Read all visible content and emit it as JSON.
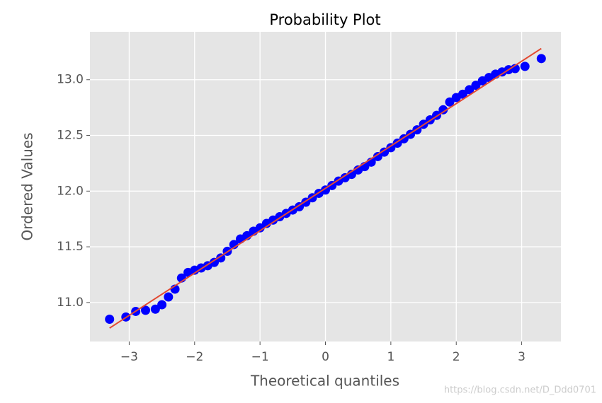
{
  "chart_data": {
    "type": "scatter",
    "title": "Probability Plot",
    "x_label": "Theoretical quantiles",
    "y_label": "Ordered Values",
    "watermark": "https://blog.csdn.net/D_Ddd0701",
    "xlim": [
      -3.6,
      3.6
    ],
    "ylim": [
      10.65,
      13.43
    ],
    "xticks": [
      {
        "value": -3,
        "label": "−3"
      },
      {
        "value": -2,
        "label": "−2"
      },
      {
        "value": -1,
        "label": "−1"
      },
      0,
      1,
      2,
      3
    ],
    "yticks": [
      {
        "value": 11,
        "label": "11.0"
      },
      {
        "value": 11.5,
        "label": "11.5"
      },
      {
        "value": 12,
        "label": "12.0"
      },
      {
        "value": 12.5,
        "label": "12.5"
      },
      {
        "value": 13,
        "label": "13.0"
      }
    ],
    "grid": true,
    "series": [
      {
        "color": "#0000ff",
        "x": [
          -3.3,
          -3.05,
          -2.9,
          -2.75,
          -2.6,
          -2.5,
          -2.4,
          -2.3,
          -2.2,
          -2.1,
          -2.0,
          -1.9,
          -1.8,
          -1.7,
          -1.6,
          -1.5,
          -1.4,
          -1.3,
          -1.2,
          -1.1,
          -1.0,
          -0.9,
          -0.8,
          -0.7,
          -0.6,
          -0.5,
          -0.4,
          -0.3,
          -0.2,
          -0.1,
          0,
          0.1,
          0.2,
          0.3,
          0.4,
          0.5,
          0.6,
          0.7,
          0.8,
          0.9,
          1.0,
          1.1,
          1.2,
          1.3,
          1.4,
          1.5,
          1.6,
          1.7,
          1.8,
          1.9,
          2.0,
          2.1,
          2.2,
          2.3,
          2.4,
          2.5,
          2.6,
          2.7,
          2.8,
          2.9,
          3.05,
          3.3
        ],
        "values": [
          10.85,
          10.87,
          10.92,
          10.93,
          10.94,
          10.98,
          11.05,
          11.12,
          11.22,
          11.27,
          11.29,
          11.31,
          11.33,
          11.36,
          11.4,
          11.46,
          11.52,
          11.57,
          11.6,
          11.64,
          11.67,
          11.71,
          11.74,
          11.77,
          11.8,
          11.83,
          11.86,
          11.9,
          11.94,
          11.98,
          12.01,
          12.05,
          12.09,
          12.12,
          12.15,
          12.19,
          12.22,
          12.26,
          12.31,
          12.35,
          12.39,
          12.43,
          12.47,
          12.51,
          12.55,
          12.6,
          12.64,
          12.68,
          12.73,
          12.8,
          12.84,
          12.87,
          12.91,
          12.95,
          12.99,
          13.02,
          13.05,
          13.07,
          13.09,
          13.1,
          13.12,
          13.19
        ]
      }
    ],
    "fit_line": {
      "color": "#e24a33",
      "x": [
        -3.3,
        3.3
      ],
      "values": [
        10.77,
        13.28
      ]
    }
  }
}
